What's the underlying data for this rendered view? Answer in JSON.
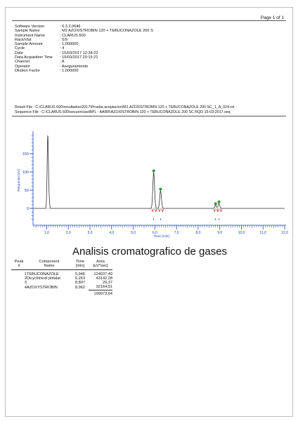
{
  "header": {
    "page_label": "Page 1 of 1"
  },
  "meta": [
    {
      "label": "Software Version",
      "value": ": 6.3.2.0646"
    },
    {
      "label": "Sample Name",
      "value": ": M1 AZOXISTROBIN 120 + TEBUCONAZOLE 200 S"
    },
    {
      "label": "Instrument Name",
      "value": ": CLARUS 600"
    },
    {
      "label": "Rack/Vial",
      "value": ": 0/9"
    },
    {
      "label": "Sample Amount",
      "value": ": 1,000000"
    },
    {
      "label": "Cycle",
      "value": ": 4"
    },
    {
      "label": "Date",
      "value": ": 15/03/2017 12:28:22"
    },
    {
      "label": "Data Acquisition Time",
      "value": ": 15/03/2017 20:15:21"
    },
    {
      "label": "Channel",
      "value": ": A"
    },
    {
      "label": "Operator",
      "value": ": Aseguramiento"
    },
    {
      "label": "Dilution Factor",
      "value": ": 1,000000"
    }
  ],
  "files": {
    "result": "Result File : C:\\CLARUS 600\\resultados\\2017\\Prueba aceptacion\\M1 AZOXISTROBIN 120 + TEBUCONAZOLE 200 SC_1_A_024.rst",
    "sequence": "Sequence File : C:\\CLARUS 600\\secuencias\\BPL - AARR\\AZOXISTROBIN 120 + TEBUCONAZOLE 200 SC RQD 15-03-2017.seq"
  },
  "chart_data": {
    "type": "line",
    "xlabel": "Time [min]",
    "ylabel": "Response [uV]",
    "xlim": [
      0.4,
      12.0
    ],
    "ylim": [
      -30,
      200
    ],
    "x_ticks": [
      "1,0",
      "2,0",
      "3,0",
      "4,0",
      "5,0",
      "6,0",
      "7,0",
      "8,0",
      "9,0",
      "10,0",
      "11,0",
      "12,0"
    ],
    "y_ticks": [
      "0",
      "50",
      "100",
      "150"
    ],
    "y_tick_values": [
      0,
      50,
      100,
      150
    ],
    "baseline_level": 0,
    "peaks": [
      {
        "time": 1.05,
        "height": 200,
        "width": 0.03,
        "marked": false
      },
      {
        "time": 5.946,
        "height": 98,
        "width": 0.04,
        "marked": true
      },
      {
        "time": 6.263,
        "height": 48,
        "width": 0.04,
        "marked": true
      },
      {
        "time": 8.807,
        "height": 8,
        "width": 0.04,
        "marked": true
      },
      {
        "time": 8.962,
        "height": 13,
        "width": 0.04,
        "marked": true
      }
    ],
    "peak_marker_color": "#2f9c3f",
    "trace_color": "#333333",
    "axis_color": "#1a3fb4"
  },
  "report_title": "Analisis cromatografico de gases",
  "table": {
    "headers": {
      "peak": "Peak\n#",
      "component": "Component\nName",
      "time": "Time\n[min]",
      "area": "Area\n[uV*sec]"
    },
    "rows": [
      {
        "peak": "1",
        "component": "TEBUCONAZOLE",
        "time": "5,946",
        "area": "124637,49"
      },
      {
        "peak": "2",
        "component": "Dicyclohexil phtalat",
        "time": "6,263",
        "area": "43142,28"
      },
      {
        "peak": "3",
        "component": "",
        "time": "8,807",
        "area": "29,37"
      },
      {
        "peak": "4",
        "component": "AZOXYSTROBIN",
        "time": "8,962",
        "area": "32164,51"
      }
    ],
    "total": "199973,64"
  }
}
